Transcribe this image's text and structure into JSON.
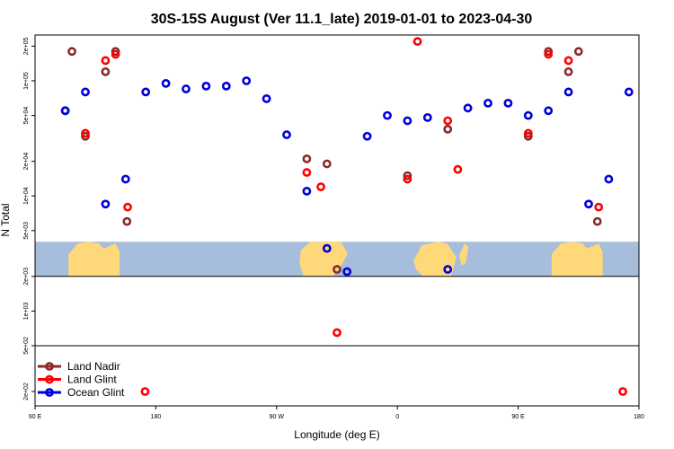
{
  "chart_data": {
    "type": "scatter",
    "title": "30S-15S August (Ver 11.1_late)   2019-01-01 to 2023-04-30",
    "xlabel": "Longitude (deg E)",
    "ylabel": "N Total",
    "x_scale": "linear",
    "y_scale": "log",
    "xlim": [
      90,
      540
    ],
    "ylim": [
      150,
      250000
    ],
    "x_ticks": [
      {
        "value": 90,
        "label": "90 E"
      },
      {
        "value": 180,
        "label": "180"
      },
      {
        "value": 270,
        "label": "90 W"
      },
      {
        "value": 360,
        "label": "0"
      },
      {
        "value": 450,
        "label": "90 E"
      },
      {
        "value": 540,
        "label": "180"
      }
    ],
    "y_ticks": [
      {
        "value": 200,
        "label": "2e+02"
      },
      {
        "value": 500,
        "label": "5e+02"
      },
      {
        "value": 1000,
        "label": "1e+03"
      },
      {
        "value": 2000,
        "label": "2e+03"
      },
      {
        "value": 5000,
        "label": "5e+03"
      },
      {
        "value": 10000,
        "label": "1e+04"
      },
      {
        "value": 20000,
        "label": "2e+04"
      },
      {
        "value": 50000,
        "label": "5e+04"
      },
      {
        "value": 100000,
        "label": "1e+05"
      },
      {
        "value": 200000,
        "label": "2e+05"
      }
    ],
    "legend_position": "bottom-left",
    "background_map": {
      "description": "world map strip 30S-15S",
      "y_range": [
        2000,
        4000
      ],
      "ocean_color": "#a6bddb",
      "land_color": "#ffd87a"
    },
    "series": [
      {
        "name": "Land Nadir",
        "color": "#8b2a2a",
        "x": [
          117.5,
          127.5,
          142.5,
          150,
          158.5,
          292.5,
          307.5,
          315,
          397.5,
          367.5,
          472.5,
          457.5,
          487.5,
          495,
          509
        ],
        "y": [
          180000,
          33000,
          120000,
          180000,
          6000,
          21000,
          19000,
          2300,
          38000,
          15000,
          180000,
          33000,
          120000,
          180000,
          6000
        ]
      },
      {
        "name": "Land Glint",
        "color": "#ff0000",
        "x": [
          127.5,
          142.5,
          150,
          159,
          172,
          292.5,
          303,
          315,
          367.5,
          375,
          397.5,
          405,
          457.5,
          472.5,
          487.5,
          510,
          528
        ],
        "y": [
          35000,
          150000,
          170000,
          8000,
          200,
          16000,
          12000,
          650,
          14000,
          220000,
          45000,
          17000,
          35000,
          170000,
          150000,
          8000,
          200
        ]
      },
      {
        "name": "Ocean Glint",
        "color": "#0000dd",
        "x": [
          112.5,
          112.5,
          127.5,
          142.5,
          157.5,
          172.5,
          187.5,
          202.5,
          217.5,
          232.5,
          247.5,
          262.5,
          277.5,
          292.5,
          307.5,
          322.5,
          337.5,
          352.5,
          367.5,
          382.5,
          397.5,
          412.5,
          427.5,
          442.5,
          457.5,
          472.5,
          487.5,
          502.5,
          517.5,
          532.5
        ],
        "y": [
          55000,
          55000,
          80000,
          8500,
          14000,
          80000,
          95000,
          85000,
          90000,
          90000,
          100000,
          70000,
          34000,
          11000,
          3500,
          2200,
          33000,
          50000,
          45000,
          48000,
          2300,
          58000,
          64000,
          64000,
          50000,
          55000,
          80000,
          8500,
          14000,
          80000
        ]
      }
    ]
  }
}
